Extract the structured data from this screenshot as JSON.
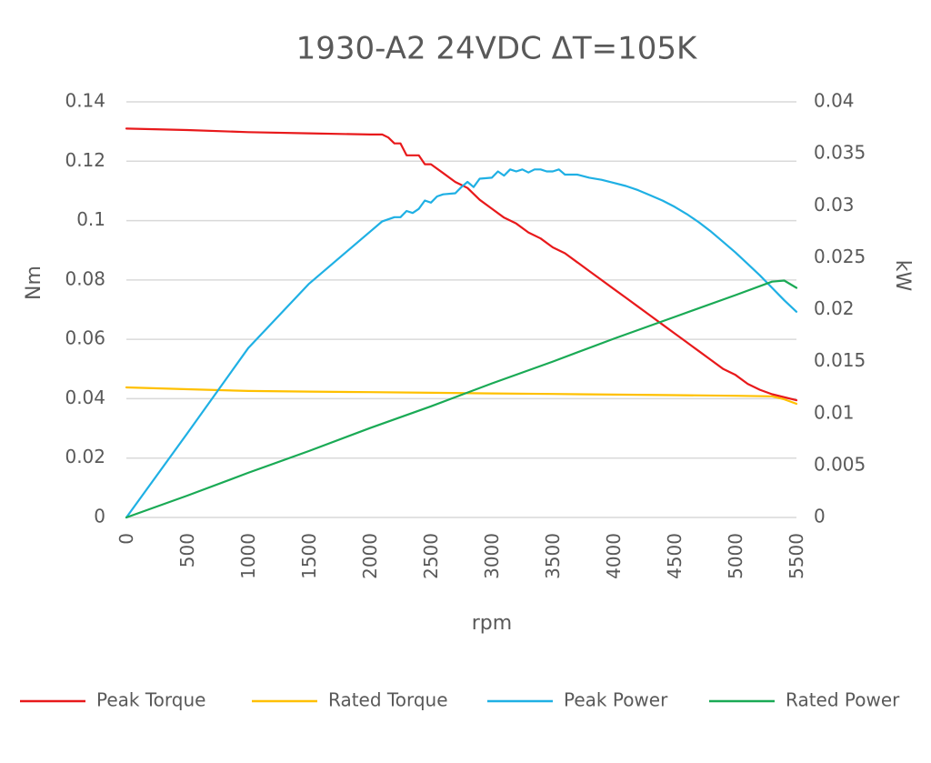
{
  "chart_data": {
    "type": "line",
    "title": "1930-A2 24VDC ΔT=105K",
    "xlabel": "rpm",
    "ylabel": "Nm",
    "y2label": "kW",
    "xlim": [
      0,
      5500
    ],
    "ylim": [
      0,
      0.14
    ],
    "y2lim": [
      0,
      0.04
    ],
    "x_ticks": [
      "0",
      "500",
      "1000",
      "1500",
      "2000",
      "2500",
      "3000",
      "3500",
      "4000",
      "4500",
      "5000",
      "5500"
    ],
    "y_ticks": [
      "0",
      "0.02",
      "0.04",
      "0.06",
      "0.08",
      "0.1",
      "0.12",
      "0.14"
    ],
    "y2_ticks": [
      "0",
      "0.005",
      "0.01",
      "0.015",
      "0.02",
      "0.025",
      "0.03",
      "0.035",
      "0.04"
    ],
    "grid": true,
    "legend_position": "bottom",
    "series": [
      {
        "name": "Peak Torque",
        "axis": "left",
        "color": "#e8191b",
        "points": [
          [
            0,
            0.131
          ],
          [
            500,
            0.1305
          ],
          [
            1000,
            0.1298
          ],
          [
            1500,
            0.1294
          ],
          [
            2000,
            0.129
          ],
          [
            2100,
            0.129
          ],
          [
            2150,
            0.128
          ],
          [
            2200,
            0.126
          ],
          [
            2250,
            0.126
          ],
          [
            2300,
            0.122
          ],
          [
            2400,
            0.122
          ],
          [
            2450,
            0.119
          ],
          [
            2500,
            0.119
          ],
          [
            2600,
            0.116
          ],
          [
            2700,
            0.113
          ],
          [
            2800,
            0.111
          ],
          [
            2900,
            0.107
          ],
          [
            3000,
            0.104
          ],
          [
            3100,
            0.101
          ],
          [
            3200,
            0.099
          ],
          [
            3300,
            0.096
          ],
          [
            3400,
            0.094
          ],
          [
            3500,
            0.091
          ],
          [
            3600,
            0.089
          ],
          [
            3700,
            0.086
          ],
          [
            3800,
            0.083
          ],
          [
            3900,
            0.08
          ],
          [
            4000,
            0.077
          ],
          [
            4100,
            0.074
          ],
          [
            4200,
            0.071
          ],
          [
            4300,
            0.068
          ],
          [
            4400,
            0.065
          ],
          [
            4500,
            0.062
          ],
          [
            4600,
            0.059
          ],
          [
            4700,
            0.056
          ],
          [
            4800,
            0.053
          ],
          [
            4900,
            0.05
          ],
          [
            5000,
            0.048
          ],
          [
            5100,
            0.045
          ],
          [
            5200,
            0.043
          ],
          [
            5300,
            0.0415
          ],
          [
            5500,
            0.0395
          ]
        ]
      },
      {
        "name": "Rated Torque",
        "axis": "left",
        "color": "#ffc000",
        "points": [
          [
            0,
            0.0438
          ],
          [
            500,
            0.0432
          ],
          [
            1000,
            0.0426
          ],
          [
            1500,
            0.0424
          ],
          [
            2000,
            0.0422
          ],
          [
            2500,
            0.042
          ],
          [
            3000,
            0.0418
          ],
          [
            3500,
            0.0416
          ],
          [
            4000,
            0.0414
          ],
          [
            4500,
            0.0412
          ],
          [
            5000,
            0.041
          ],
          [
            5300,
            0.0408
          ],
          [
            5400,
            0.0398
          ],
          [
            5500,
            0.0383
          ]
        ]
      },
      {
        "name": "Peak Power",
        "axis": "right",
        "color": "#1fb0e4",
        "points": [
          [
            0,
            0
          ],
          [
            500,
            0.0081
          ],
          [
            1000,
            0.0163
          ],
          [
            1500,
            0.0225
          ],
          [
            2000,
            0.0275
          ],
          [
            2100,
            0.0285
          ],
          [
            2200,
            0.0289
          ],
          [
            2250,
            0.0289
          ],
          [
            2300,
            0.0295
          ],
          [
            2350,
            0.0293
          ],
          [
            2400,
            0.0297
          ],
          [
            2450,
            0.0305
          ],
          [
            2500,
            0.0303
          ],
          [
            2550,
            0.0309
          ],
          [
            2600,
            0.0311
          ],
          [
            2700,
            0.0312
          ],
          [
            2750,
            0.0318
          ],
          [
            2800,
            0.0323
          ],
          [
            2850,
            0.0318
          ],
          [
            2900,
            0.0326
          ],
          [
            3000,
            0.0327
          ],
          [
            3050,
            0.0333
          ],
          [
            3100,
            0.0329
          ],
          [
            3150,
            0.0335
          ],
          [
            3200,
            0.0333
          ],
          [
            3250,
            0.0335
          ],
          [
            3300,
            0.0332
          ],
          [
            3350,
            0.0335
          ],
          [
            3400,
            0.0335
          ],
          [
            3450,
            0.0333
          ],
          [
            3500,
            0.0333
          ],
          [
            3550,
            0.0335
          ],
          [
            3600,
            0.033
          ],
          [
            3700,
            0.033
          ],
          [
            3800,
            0.0327
          ],
          [
            3900,
            0.0325
          ],
          [
            4000,
            0.0322
          ],
          [
            4100,
            0.0319
          ],
          [
            4200,
            0.0315
          ],
          [
            4300,
            0.031
          ],
          [
            4400,
            0.0305
          ],
          [
            4500,
            0.0299
          ],
          [
            4600,
            0.0292
          ],
          [
            4700,
            0.0284
          ],
          [
            4800,
            0.0275
          ],
          [
            4900,
            0.0265
          ],
          [
            5000,
            0.0255
          ],
          [
            5100,
            0.0244
          ],
          [
            5200,
            0.0233
          ],
          [
            5300,
            0.0221
          ],
          [
            5400,
            0.0209
          ],
          [
            5500,
            0.0198
          ]
        ]
      },
      {
        "name": "Rated Power",
        "axis": "right",
        "color": "#1aaa55",
        "points": [
          [
            0,
            0
          ],
          [
            500,
            0.0021
          ],
          [
            1000,
            0.0043
          ],
          [
            1500,
            0.0064
          ],
          [
            2000,
            0.0086
          ],
          [
            2500,
            0.0107
          ],
          [
            3000,
            0.0129
          ],
          [
            3500,
            0.015
          ],
          [
            4000,
            0.0172
          ],
          [
            4500,
            0.0193
          ],
          [
            5000,
            0.0214
          ],
          [
            5300,
            0.0227
          ],
          [
            5400,
            0.0228
          ],
          [
            5500,
            0.0221
          ]
        ]
      }
    ]
  }
}
